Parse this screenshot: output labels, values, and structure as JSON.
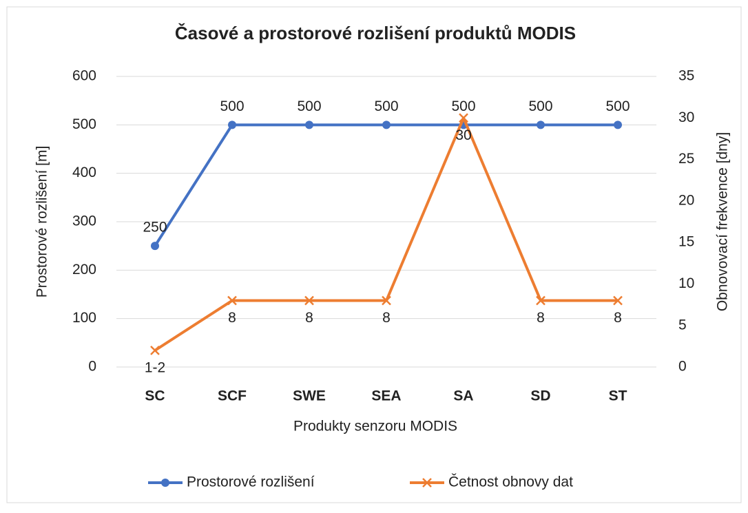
{
  "chart_data": {
    "type": "line",
    "title": "Časové a prostorové rozlišení produktů MODIS",
    "x_label": "Produkty senzoru MODIS",
    "y_label": "Prostorové rozlišení [m]",
    "y2_label": "Obnovovací frekvence [dny]",
    "categories": [
      "SC",
      "SCF",
      "SWE",
      "SEA",
      "SA",
      "SD",
      "ST"
    ],
    "series": [
      {
        "name": "Prostorové rozlišení",
        "color": "#4472c4",
        "marker": "circle",
        "values": [
          250,
          500,
          500,
          500,
          500,
          500,
          500
        ]
      },
      {
        "name": "Četnost obnovy dat",
        "color": "#ed7d31",
        "marker": "x",
        "axis": "y2",
        "values": [
          2,
          8,
          8,
          8,
          30,
          8,
          8
        ],
        "value_labels": [
          "1-2",
          "8",
          "8",
          "8",
          "30",
          "8",
          "8"
        ]
      }
    ],
    "ylim": [
      0,
      600
    ],
    "yticks": [
      0,
      100,
      200,
      300,
      400,
      500,
      600
    ],
    "y2lim": [
      0,
      35
    ],
    "y2ticks": [
      0,
      5,
      10,
      15,
      20,
      25,
      30,
      35
    ],
    "grid": true,
    "legend": "bottom"
  }
}
